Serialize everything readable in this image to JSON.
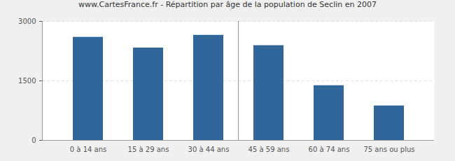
{
  "chart_data": {
    "type": "bar",
    "title": "www.CartesFrance.fr - Répartition par âge de la population de Seclin en 2007",
    "categories": [
      "0 à 14 ans",
      "15 à 29 ans",
      "30 à 44 ans",
      "45 à 59 ans",
      "60 à 74 ans",
      "75 ans ou plus"
    ],
    "values": [
      2600,
      2330,
      2650,
      2390,
      1380,
      870
    ],
    "color": "#31669a",
    "ylim": [
      0,
      3000
    ],
    "yticks": [
      0,
      1500,
      3000
    ],
    "grid": true
  }
}
